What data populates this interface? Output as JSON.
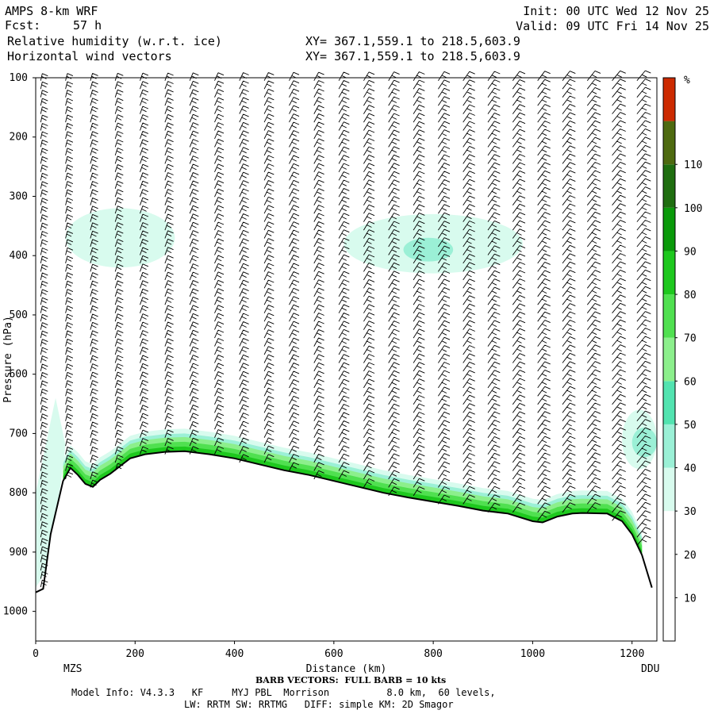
{
  "header": {
    "model": "AMPS 8-km WRF",
    "forecast_label": "Fcst:",
    "forecast_value": "57 h",
    "field_1": "Relative humidity (w.r.t. ice)",
    "field_2": "Horizontal wind vectors",
    "xy_1": "XY= 367.1,559.1 to 218.5,603.9",
    "xy_2": "XY= 367.1,559.1 to 218.5,603.9",
    "init": "Init: 00 UTC Wed 12 Nov 25",
    "valid": "Valid: 09 UTC Fri 14 Nov 25"
  },
  "footer": {
    "barb_note": "BARB VECTORS:  FULL BARB = 10 kts",
    "model_info": "Model Info: V4.3.3   KF     MYJ PBL  Morrison          8.0 km,  60 levels,",
    "physics": "LW: RRTM SW: RRTMG   DIFF: simple KM: 2D Smagor"
  },
  "chart_data": {
    "type": "heatmap",
    "title": "Relative humidity (w.r.t. ice)",
    "overlay": "Horizontal wind vectors (barbs)",
    "xlabel": "Distance (km)",
    "ylabel": "Pressure (hPa)",
    "xlim": [
      0,
      1250
    ],
    "ylim": [
      1050,
      100
    ],
    "x_ticks": [
      0,
      200,
      400,
      600,
      800,
      1000,
      1200
    ],
    "y_ticks": [
      100,
      200,
      300,
      400,
      500,
      600,
      700,
      800,
      900,
      1000
    ],
    "endpoints": {
      "left": "MZS",
      "right": "DDU"
    },
    "colorbar": {
      "unit": "%",
      "levels": [
        10,
        20,
        30,
        40,
        50,
        60,
        70,
        80,
        90,
        100,
        110
      ],
      "colors": [
        "#ffffff",
        "#ffffff",
        "#ffffff",
        "#d8fbee",
        "#9bf0d6",
        "#52e3b0",
        "#8cef8c",
        "#50e050",
        "#1ec81e",
        "#0a9a0a",
        "#1f6e10",
        "#4e6a10",
        "#cc2a00"
      ]
    },
    "terrain": {
      "x": [
        0,
        15,
        30,
        55,
        70,
        85,
        100,
        115,
        130,
        150,
        170,
        190,
        220,
        260,
        300,
        350,
        400,
        450,
        500,
        550,
        600,
        650,
        700,
        750,
        800,
        850,
        900,
        950,
        1000,
        1020,
        1050,
        1080,
        1100,
        1150,
        1180,
        1200,
        1220,
        1240
      ],
      "p": [
        968,
        962,
        870,
        780,
        758,
        770,
        785,
        790,
        778,
        768,
        755,
        742,
        735,
        731,
        730,
        735,
        742,
        752,
        762,
        770,
        780,
        790,
        800,
        808,
        815,
        822,
        830,
        835,
        848,
        850,
        840,
        835,
        834,
        835,
        848,
        870,
        905,
        960
      ]
    },
    "barb_columns_km": [
      10,
      60,
      110,
      160,
      210,
      260,
      310,
      360,
      410,
      460,
      510,
      560,
      610,
      660,
      710,
      760,
      810,
      860,
      910,
      960,
      1010,
      1060,
      1110,
      1160,
      1210
    ],
    "humid_regions": [
      {
        "level": 40,
        "x": [
          60,
          280
        ],
        "p": [
          320,
          420
        ]
      },
      {
        "level": 40,
        "x": [
          620,
          980
        ],
        "p": [
          330,
          430
        ]
      },
      {
        "level": 50,
        "x": [
          740,
          840
        ],
        "p": [
          370,
          410
        ]
      },
      {
        "level": 40,
        "x": [
          1180,
          1250
        ],
        "p": [
          660,
          760
        ]
      },
      {
        "level": 50,
        "x": [
          1200,
          1250
        ],
        "p": [
          690,
          740
        ]
      }
    ]
  }
}
